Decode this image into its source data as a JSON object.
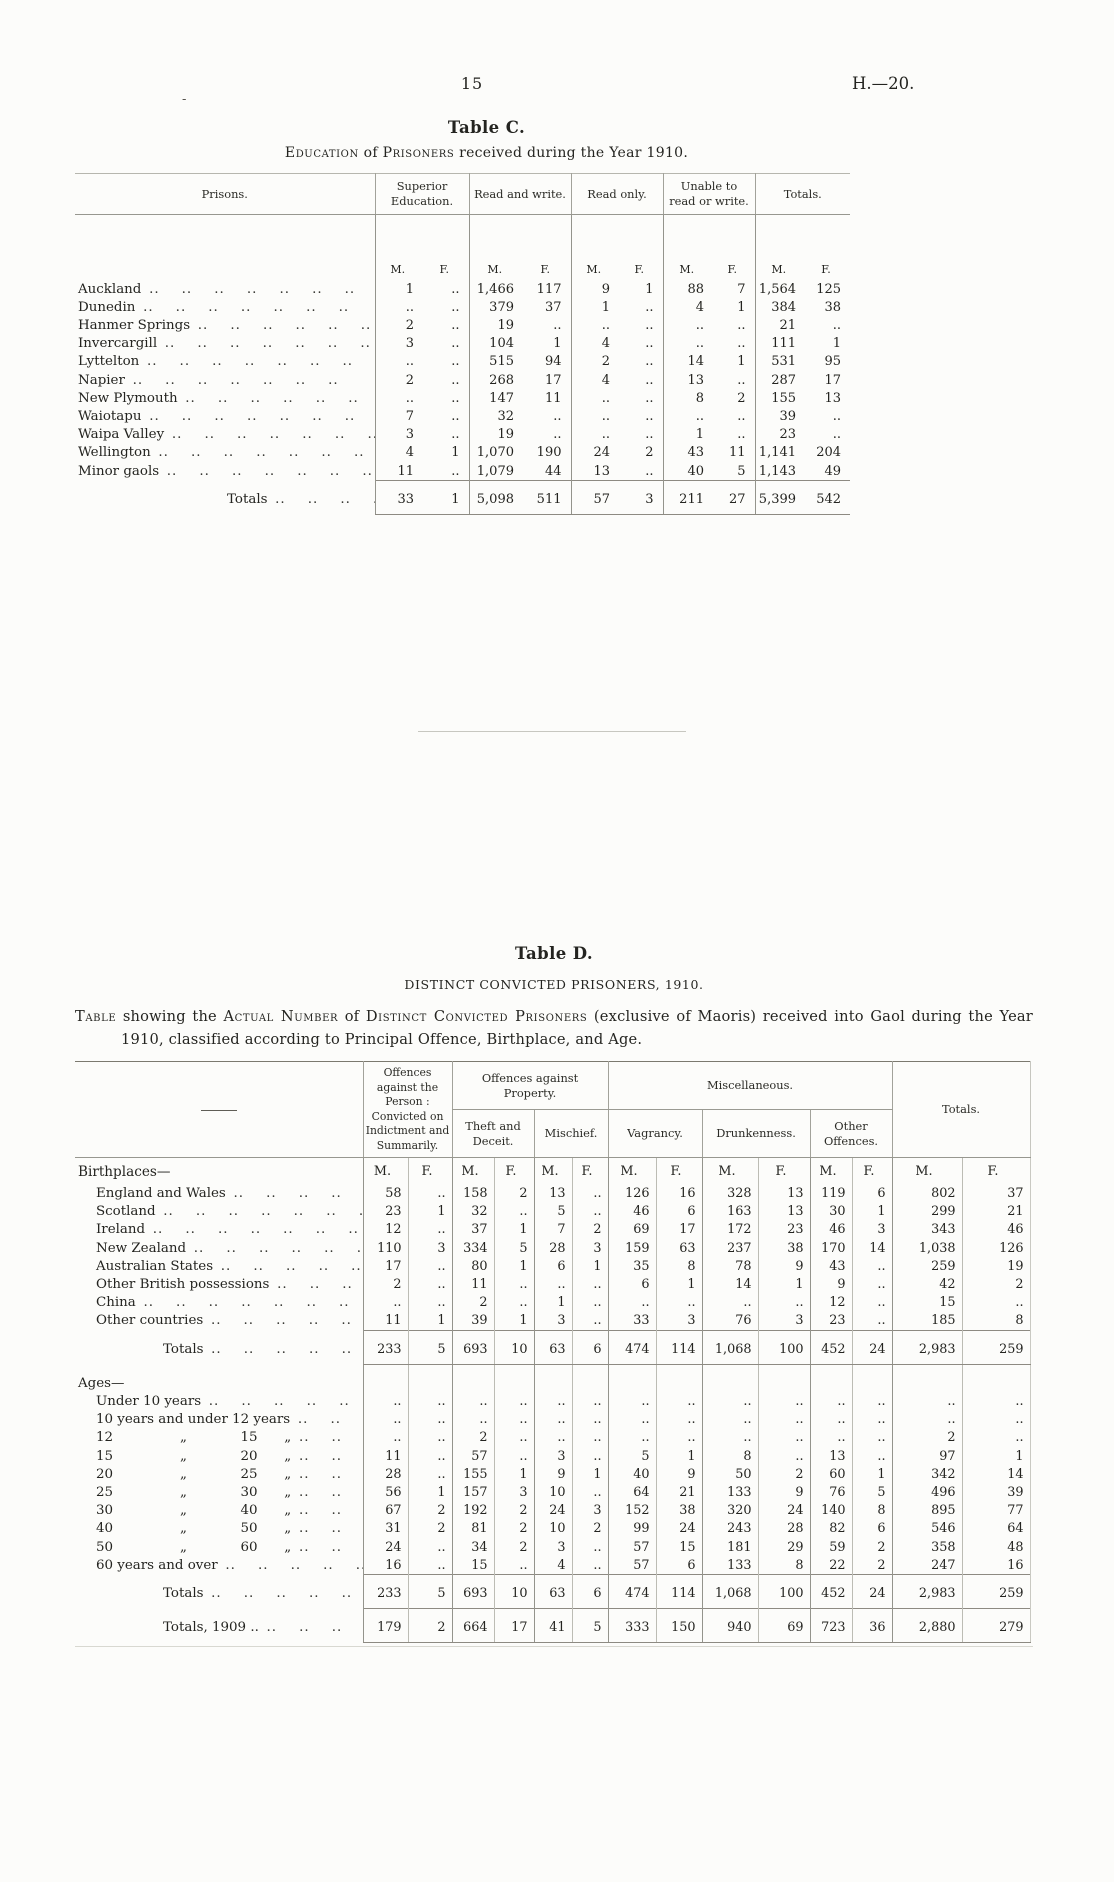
{
  "page": {
    "number": "15",
    "doc_ref": "H.—20.",
    "margin_mark": "-"
  },
  "table_c": {
    "title": "Table C.",
    "subtitle": {
      "sc1": "Education",
      "of": " of ",
      "sc2": "Prisoners",
      "rest": " received during the Year 1910."
    },
    "columns": {
      "prisons": "Prisons.",
      "groups": [
        "Superior Education.",
        "Read and write.",
        "Read only.",
        "Unable to read or write.",
        "Totals."
      ],
      "mf": [
        "M.",
        "F."
      ]
    },
    "mf_row_label": "",
    "rows": [
      {
        "label": "Auckland",
        "dots": true,
        "cells": [
          "1",
          "..",
          "1,466",
          "117",
          "9",
          "1",
          "88",
          "7",
          "1,564",
          "125"
        ]
      },
      {
        "label": "Dunedin",
        "dots": true,
        "cells": [
          "..",
          "..",
          "379",
          "37",
          "1",
          "..",
          "4",
          "1",
          "384",
          "38"
        ]
      },
      {
        "label": "Hanmer Springs",
        "dots": true,
        "cells": [
          "2",
          "..",
          "19",
          "..",
          "..",
          "..",
          "..",
          "..",
          "21",
          ".."
        ]
      },
      {
        "label": "Invercargill",
        "dots": true,
        "cells": [
          "3",
          "..",
          "104",
          "1",
          "4",
          "..",
          "..",
          "..",
          "111",
          "1"
        ]
      },
      {
        "label": "Lyttelton",
        "dots": true,
        "cells": [
          "..",
          "..",
          "515",
          "94",
          "2",
          "..",
          "14",
          "1",
          "531",
          "95"
        ]
      },
      {
        "label": "Napier",
        "dots": true,
        "cells": [
          "2",
          "..",
          "268",
          "17",
          "4",
          "..",
          "13",
          "..",
          "287",
          "17"
        ]
      },
      {
        "label": "New Plymouth",
        "dots": true,
        "cells": [
          "..",
          "..",
          "147",
          "11",
          "..",
          "..",
          "8",
          "2",
          "155",
          "13"
        ]
      },
      {
        "label": "Waiotapu",
        "dots": true,
        "cells": [
          "7",
          "..",
          "32",
          "..",
          "..",
          "..",
          "..",
          "..",
          "39",
          ".."
        ]
      },
      {
        "label": "Waipa Valley",
        "dots": true,
        "cells": [
          "3",
          "..",
          "19",
          "..",
          "..",
          "..",
          "1",
          "..",
          "23",
          ".."
        ]
      },
      {
        "label": "Wellington",
        "dots": true,
        "cells": [
          "4",
          "1",
          "1,070",
          "190",
          "24",
          "2",
          "43",
          "11",
          "1,141",
          "204"
        ]
      },
      {
        "label": "Minor gaols",
        "dots": true,
        "cells": [
          "11",
          "..",
          "1,079",
          "44",
          "13",
          "..",
          "40",
          "5",
          "1,143",
          "49"
        ]
      },
      {
        "label": "Totals",
        "type": "totals",
        "cls": "bline",
        "dots": true,
        "cells": [
          "33",
          "1",
          "5,098",
          "511",
          "57",
          "3",
          "211",
          "27",
          "5,399",
          "542"
        ]
      }
    ]
  },
  "table_d": {
    "title": "Table D.",
    "subtitle": "DISTINCT CONVICTED PRISONERS, 1910.",
    "description": {
      "p1": "Table",
      "p2": " showing the ",
      "p3": "Actual Number",
      "p4": " of ",
      "p5": "Distinct Convicted Prisoners",
      "p6": " (exclusive of Maoris) received into Gaol during the Year 1910, classified according to Principal Offence, Birthplace, and Age."
    },
    "header": {
      "person": "Offences against the Person : Convicted on Indictment and Summarily.",
      "property": "Offences against Property.",
      "misc": "Miscellaneous.",
      "totals": "Totals.",
      "sub": [
        "Theft and Deceit.",
        "Mischief.",
        "Vagrancy.",
        "Drunkenness.",
        "Other Offences."
      ]
    },
    "columns": {
      "mf": [
        "M.",
        "F."
      ]
    },
    "mf_row_label": "Birthplaces—",
    "rows": [
      {
        "label": "England and Wales",
        "ind": true,
        "dots": true,
        "cells": [
          "58",
          "..",
          "158",
          "2",
          "13",
          "..",
          "126",
          "16",
          "328",
          "13",
          "119",
          "6",
          "802",
          "37"
        ]
      },
      {
        "label": "Scotland",
        "ind": true,
        "dots": true,
        "cells": [
          "23",
          "1",
          "32",
          "..",
          "5",
          "..",
          "46",
          "6",
          "163",
          "13",
          "30",
          "1",
          "299",
          "21"
        ]
      },
      {
        "label": "Ireland",
        "ind": true,
        "dots": true,
        "cells": [
          "12",
          "..",
          "37",
          "1",
          "7",
          "2",
          "69",
          "17",
          "172",
          "23",
          "46",
          "3",
          "343",
          "46"
        ]
      },
      {
        "label": "New Zealand",
        "ind": true,
        "dots": true,
        "cells": [
          "110",
          "3",
          "334",
          "5",
          "28",
          "3",
          "159",
          "63",
          "237",
          "38",
          "170",
          "14",
          "1,038",
          "126"
        ]
      },
      {
        "label": "Australian States",
        "ind": true,
        "dots": true,
        "cells": [
          "17",
          "..",
          "80",
          "1",
          "6",
          "1",
          "35",
          "8",
          "78",
          "9",
          "43",
          "..",
          "259",
          "19"
        ]
      },
      {
        "label": "Other British possessions",
        "ind": true,
        "dots": true,
        "cells": [
          "2",
          "..",
          "11",
          "..",
          "..",
          "..",
          "6",
          "1",
          "14",
          "1",
          "9",
          "..",
          "42",
          "2"
        ]
      },
      {
        "label": "China",
        "ind": true,
        "dots": true,
        "cells": [
          "..",
          "..",
          "2",
          "..",
          "1",
          "..",
          "..",
          "..",
          "..",
          "..",
          "12",
          "..",
          "15",
          ".."
        ]
      },
      {
        "label": "Other countries",
        "ind": true,
        "dots": true,
        "cells": [
          "11",
          "1",
          "39",
          "1",
          "3",
          "..",
          "33",
          "3",
          "76",
          "3",
          "23",
          "..",
          "185",
          "8"
        ]
      },
      {
        "label": "Totals",
        "type": "totals",
        "cls": "bline",
        "dots": true,
        "cells": [
          "233",
          "5",
          "693",
          "10",
          "63",
          "6",
          "474",
          "114",
          "1,068",
          "100",
          "452",
          "24",
          "2,983",
          "259"
        ]
      },
      {
        "label": "Ages—",
        "type": "section",
        "cells": [
          "",
          "",
          "",
          "",
          "",
          "",
          "",
          "",
          "",
          "",
          "",
          "",
          "",
          ""
        ]
      },
      {
        "label": "Under 10 years",
        "ind": true,
        "dots": true,
        "cells": [
          "..",
          "..",
          "..",
          "..",
          "..",
          "..",
          "..",
          "..",
          "..",
          "..",
          "..",
          "..",
          "..",
          ".."
        ]
      },
      {
        "label": "10 years and under 12 years",
        "ind": true,
        "dots": true,
        "cells": [
          "..",
          "..",
          "..",
          "..",
          "..",
          "..",
          "..",
          "..",
          "..",
          "..",
          "..",
          "..",
          "..",
          ".."
        ]
      },
      {
        "label": "12     „    15  „",
        "ind": true,
        "dots": true,
        "cells": [
          "..",
          "..",
          "2",
          "..",
          "..",
          "..",
          "..",
          "..",
          "..",
          "..",
          "..",
          "..",
          "2",
          ".."
        ]
      },
      {
        "label": "15     „    20  „",
        "ind": true,
        "dots": true,
        "cells": [
          "11",
          "..",
          "57",
          "..",
          "3",
          "..",
          "5",
          "1",
          "8",
          "..",
          "13",
          "..",
          "97",
          "1"
        ]
      },
      {
        "label": "20     „    25  „",
        "ind": true,
        "dots": true,
        "cells": [
          "28",
          "..",
          "155",
          "1",
          "9",
          "1",
          "40",
          "9",
          "50",
          "2",
          "60",
          "1",
          "342",
          "14"
        ]
      },
      {
        "label": "25     „    30  „",
        "ind": true,
        "dots": true,
        "cells": [
          "56",
          "1",
          "157",
          "3",
          "10",
          "..",
          "64",
          "21",
          "133",
          "9",
          "76",
          "5",
          "496",
          "39"
        ]
      },
      {
        "label": "30     „    40  „",
        "ind": true,
        "dots": true,
        "cells": [
          "67",
          "2",
          "192",
          "2",
          "24",
          "3",
          "152",
          "38",
          "320",
          "24",
          "140",
          "8",
          "895",
          "77"
        ]
      },
      {
        "label": "40     „    50  „",
        "ind": true,
        "dots": true,
        "cells": [
          "31",
          "2",
          "81",
          "2",
          "10",
          "2",
          "99",
          "24",
          "243",
          "28",
          "82",
          "6",
          "546",
          "64"
        ]
      },
      {
        "label": "50     „    60  „",
        "ind": true,
        "dots": true,
        "cells": [
          "24",
          "..",
          "34",
          "2",
          "3",
          "..",
          "57",
          "15",
          "181",
          "29",
          "59",
          "2",
          "358",
          "48"
        ]
      },
      {
        "label": "60 years and over",
        "ind": true,
        "dots": true,
        "cells": [
          "16",
          "..",
          "15",
          "..",
          "4",
          "..",
          "57",
          "6",
          "133",
          "8",
          "22",
          "2",
          "247",
          "16"
        ]
      },
      {
        "label": "Totals",
        "type": "totals",
        "dots": true,
        "cells": [
          "233",
          "5",
          "693",
          "10",
          "63",
          "6",
          "474",
          "114",
          "1,068",
          "100",
          "452",
          "24",
          "2,983",
          "259"
        ]
      },
      {
        "label": "Totals, 1909 ..",
        "type": "totals",
        "cls": "bline",
        "dots": true,
        "cells": [
          "179",
          "2",
          "664",
          "17",
          "41",
          "5",
          "333",
          "150",
          "940",
          "69",
          "723",
          "36",
          "2,880",
          "279"
        ]
      }
    ]
  }
}
